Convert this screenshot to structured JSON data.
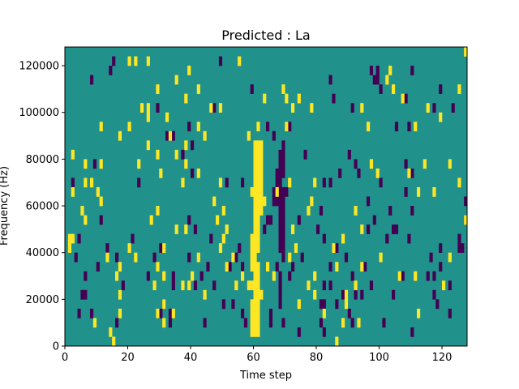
{
  "chart_data": {
    "type": "heatmap",
    "title": "Predicted : La",
    "xlabel": "Time step",
    "ylabel": "Frequency (Hz)",
    "xlim": [
      0,
      128
    ],
    "ylim": [
      0,
      128000
    ],
    "x_ticks": [
      0,
      20,
      40,
      60,
      80,
      100,
      120
    ],
    "y_ticks": [
      0,
      20000,
      40000,
      60000,
      80000,
      100000,
      120000
    ],
    "y_tick_labels": [
      "0",
      "20000",
      "40000",
      "60000",
      "80000",
      "100000",
      "120000"
    ],
    "color_levels": {
      "low": "#440154",
      "mid": "#21918c",
      "high": "#fde725"
    },
    "background_level": "mid",
    "cell_width_timesteps": 1,
    "cell_height_hz": 4000,
    "high_cells": [
      [
        127,
        124000
      ],
      [
        20,
        120000
      ],
      [
        22,
        120000
      ],
      [
        26,
        120000
      ],
      [
        55,
        120000
      ],
      [
        39,
        116000
      ],
      [
        103,
        116000
      ],
      [
        35,
        112000
      ],
      [
        102,
        112000
      ],
      [
        29,
        108000
      ],
      [
        42,
        108000
      ],
      [
        69,
        108000
      ],
      [
        104,
        108000
      ],
      [
        125,
        108000
      ],
      [
        38,
        104000
      ],
      [
        63,
        104000
      ],
      [
        70,
        104000
      ],
      [
        74,
        104000
      ],
      [
        107,
        104000
      ],
      [
        24,
        100000
      ],
      [
        26,
        100000
      ],
      [
        46,
        100000
      ],
      [
        49,
        100000
      ],
      [
        72,
        100000
      ],
      [
        78,
        100000
      ],
      [
        94,
        100000
      ],
      [
        115,
        100000
      ],
      [
        26,
        96000
      ],
      [
        32,
        96000
      ],
      [
        119,
        96000
      ],
      [
        11,
        92000
      ],
      [
        20,
        92000
      ],
      [
        42,
        92000
      ],
      [
        61,
        92000
      ],
      [
        70,
        92000
      ],
      [
        96,
        92000
      ],
      [
        111,
        92000
      ],
      [
        17,
        88000
      ],
      [
        33,
        88000
      ],
      [
        44,
        88000
      ],
      [
        58,
        88000
      ],
      [
        26,
        84000
      ],
      [
        38,
        84000
      ],
      [
        60,
        84000
      ],
      [
        61,
        84000
      ],
      [
        62,
        84000
      ],
      [
        2,
        80000
      ],
      [
        29,
        80000
      ],
      [
        35,
        80000
      ],
      [
        60,
        80000
      ],
      [
        61,
        80000
      ],
      [
        62,
        80000
      ],
      [
        6,
        76000
      ],
      [
        11,
        76000
      ],
      [
        23,
        76000
      ],
      [
        38,
        76000
      ],
      [
        60,
        76000
      ],
      [
        61,
        76000
      ],
      [
        62,
        76000
      ],
      [
        97,
        76000
      ],
      [
        114,
        76000
      ],
      [
        122,
        76000
      ],
      [
        30,
        72000
      ],
      [
        42,
        72000
      ],
      [
        60,
        72000
      ],
      [
        61,
        72000
      ],
      [
        62,
        72000
      ],
      [
        99,
        72000
      ],
      [
        109,
        72000
      ],
      [
        6,
        68000
      ],
      [
        8,
        68000
      ],
      [
        37,
        68000
      ],
      [
        49,
        68000
      ],
      [
        60,
        68000
      ],
      [
        61,
        68000
      ],
      [
        62,
        68000
      ],
      [
        71,
        68000
      ],
      [
        79,
        68000
      ],
      [
        125,
        68000
      ],
      [
        2,
        64000
      ],
      [
        10,
        64000
      ],
      [
        59,
        64000
      ],
      [
        60,
        64000
      ],
      [
        61,
        64000
      ],
      [
        62,
        64000
      ],
      [
        67,
        64000
      ],
      [
        112,
        64000
      ],
      [
        117,
        64000
      ],
      [
        11,
        60000
      ],
      [
        47,
        60000
      ],
      [
        60,
        60000
      ],
      [
        61,
        60000
      ],
      [
        62,
        60000
      ],
      [
        63,
        60000
      ],
      [
        78,
        60000
      ],
      [
        5,
        56000
      ],
      [
        29,
        56000
      ],
      [
        50,
        56000
      ],
      [
        60,
        56000
      ],
      [
        61,
        56000
      ],
      [
        62,
        56000
      ],
      [
        77,
        56000
      ],
      [
        92,
        56000
      ],
      [
        6,
        52000
      ],
      [
        27,
        52000
      ],
      [
        48,
        52000
      ],
      [
        60,
        52000
      ],
      [
        61,
        52000
      ],
      [
        127,
        52000
      ],
      [
        35,
        48000
      ],
      [
        38,
        48000
      ],
      [
        51,
        48000
      ],
      [
        60,
        48000
      ],
      [
        61,
        48000
      ],
      [
        72,
        48000
      ],
      [
        94,
        48000
      ],
      [
        1,
        44000
      ],
      [
        2,
        44000
      ],
      [
        50,
        44000
      ],
      [
        59,
        44000
      ],
      [
        60,
        44000
      ],
      [
        61,
        44000
      ],
      [
        88,
        44000
      ],
      [
        1,
        40000
      ],
      [
        20,
        40000
      ],
      [
        31,
        40000
      ],
      [
        49,
        40000
      ],
      [
        59,
        40000
      ],
      [
        60,
        40000
      ],
      [
        61,
        40000
      ],
      [
        73,
        40000
      ],
      [
        85,
        40000
      ],
      [
        13,
        36000
      ],
      [
        22,
        36000
      ],
      [
        42,
        36000
      ],
      [
        53,
        36000
      ],
      [
        59,
        36000
      ],
      [
        60,
        36000
      ],
      [
        71,
        36000
      ],
      [
        100,
        36000
      ],
      [
        122,
        36000
      ],
      [
        17,
        32000
      ],
      [
        29,
        32000
      ],
      [
        51,
        32000
      ],
      [
        59,
        32000
      ],
      [
        60,
        32000
      ],
      [
        61,
        32000
      ],
      [
        64,
        32000
      ],
      [
        86,
        32000
      ],
      [
        94,
        32000
      ],
      [
        16,
        28000
      ],
      [
        31,
        28000
      ],
      [
        40,
        28000
      ],
      [
        56,
        28000
      ],
      [
        60,
        28000
      ],
      [
        61,
        28000
      ],
      [
        66,
        28000
      ],
      [
        79,
        28000
      ],
      [
        106,
        28000
      ],
      [
        111,
        28000
      ],
      [
        28,
        24000
      ],
      [
        37,
        24000
      ],
      [
        39,
        24000
      ],
      [
        54,
        24000
      ],
      [
        58,
        24000
      ],
      [
        59,
        24000
      ],
      [
        60,
        24000
      ],
      [
        61,
        24000
      ],
      [
        77,
        24000
      ],
      [
        92,
        24000
      ],
      [
        120,
        24000
      ],
      [
        17,
        20000
      ],
      [
        44,
        20000
      ],
      [
        60,
        20000
      ],
      [
        61,
        20000
      ],
      [
        62,
        20000
      ],
      [
        79,
        20000
      ],
      [
        89,
        20000
      ],
      [
        31,
        16000
      ],
      [
        59,
        16000
      ],
      [
        60,
        16000
      ],
      [
        61,
        16000
      ],
      [
        74,
        16000
      ],
      [
        89,
        16000
      ],
      [
        17,
        12000
      ],
      [
        29,
        12000
      ],
      [
        34,
        12000
      ],
      [
        59,
        12000
      ],
      [
        60,
        12000
      ],
      [
        61,
        12000
      ],
      [
        82,
        12000
      ],
      [
        112,
        12000
      ],
      [
        9,
        8000
      ],
      [
        31,
        8000
      ],
      [
        59,
        8000
      ],
      [
        60,
        8000
      ],
      [
        61,
        8000
      ],
      [
        88,
        8000
      ],
      [
        93,
        8000
      ],
      [
        14,
        4000
      ],
      [
        59,
        4000
      ],
      [
        60,
        4000
      ],
      [
        61,
        4000
      ],
      [
        15,
        0
      ],
      [
        86,
        0
      ]
    ],
    "low_cells": [
      [
        15,
        120000
      ],
      [
        49,
        120000
      ],
      [
        14,
        116000
      ],
      [
        97,
        116000
      ],
      [
        99,
        116000
      ],
      [
        110,
        116000
      ],
      [
        8,
        112000
      ],
      [
        98,
        112000
      ],
      [
        99,
        112000
      ],
      [
        84,
        112000
      ],
      [
        59,
        108000
      ],
      [
        100,
        108000
      ],
      [
        119,
        108000
      ],
      [
        85,
        104000
      ],
      [
        108,
        104000
      ],
      [
        29,
        100000
      ],
      [
        91,
        100000
      ],
      [
        117,
        100000
      ],
      [
        123,
        100000
      ],
      [
        47,
        100000
      ],
      [
        39,
        92000
      ],
      [
        64,
        92000
      ],
      [
        71,
        92000
      ],
      [
        105,
        92000
      ],
      [
        109,
        92000
      ],
      [
        32,
        88000
      ],
      [
        34,
        88000
      ],
      [
        66,
        88000
      ],
      [
        40,
        84000
      ],
      [
        69,
        84000
      ],
      [
        37,
        80000
      ],
      [
        68,
        80000
      ],
      [
        69,
        80000
      ],
      [
        76,
        80000
      ],
      [
        90,
        80000
      ],
      [
        9,
        76000
      ],
      [
        68,
        76000
      ],
      [
        69,
        76000
      ],
      [
        92,
        76000
      ],
      [
        108,
        76000
      ],
      [
        40,
        72000
      ],
      [
        67,
        72000
      ],
      [
        68,
        72000
      ],
      [
        69,
        72000
      ],
      [
        87,
        72000
      ],
      [
        93,
        72000
      ],
      [
        110,
        72000
      ],
      [
        2,
        68000
      ],
      [
        23,
        68000
      ],
      [
        51,
        68000
      ],
      [
        56,
        68000
      ],
      [
        67,
        68000
      ],
      [
        68,
        68000
      ],
      [
        82,
        68000
      ],
      [
        84,
        68000
      ],
      [
        100,
        68000
      ],
      [
        66,
        64000
      ],
      [
        68,
        64000
      ],
      [
        69,
        64000
      ],
      [
        70,
        64000
      ],
      [
        108,
        64000
      ],
      [
        66,
        60000
      ],
      [
        67,
        60000
      ],
      [
        68,
        60000
      ],
      [
        69,
        60000
      ],
      [
        96,
        60000
      ],
      [
        127,
        60000
      ],
      [
        68,
        56000
      ],
      [
        69,
        56000
      ],
      [
        81,
        56000
      ],
      [
        103,
        56000
      ],
      [
        110,
        56000
      ],
      [
        11,
        52000
      ],
      [
        39,
        52000
      ],
      [
        64,
        52000
      ],
      [
        65,
        52000
      ],
      [
        68,
        52000
      ],
      [
        69,
        52000
      ],
      [
        74,
        52000
      ],
      [
        98,
        52000
      ],
      [
        127,
        52000
      ],
      [
        41,
        48000
      ],
      [
        63,
        48000
      ],
      [
        68,
        48000
      ],
      [
        69,
        48000
      ],
      [
        80,
        48000
      ],
      [
        96,
        48000
      ],
      [
        104,
        48000
      ],
      [
        105,
        48000
      ],
      [
        4,
        44000
      ],
      [
        21,
        44000
      ],
      [
        46,
        44000
      ],
      [
        68,
        44000
      ],
      [
        69,
        44000
      ],
      [
        82,
        44000
      ],
      [
        102,
        44000
      ],
      [
        109,
        44000
      ],
      [
        125,
        44000
      ],
      [
        13,
        40000
      ],
      [
        30,
        40000
      ],
      [
        55,
        40000
      ],
      [
        68,
        40000
      ],
      [
        69,
        40000
      ],
      [
        86,
        40000
      ],
      [
        119,
        40000
      ],
      [
        125,
        40000
      ],
      [
        126,
        40000
      ],
      [
        3,
        36000
      ],
      [
        16,
        36000
      ],
      [
        28,
        36000
      ],
      [
        39,
        36000
      ],
      [
        54,
        36000
      ],
      [
        69,
        36000
      ],
      [
        75,
        36000
      ],
      [
        89,
        36000
      ],
      [
        116,
        36000
      ],
      [
        10,
        32000
      ],
      [
        45,
        32000
      ],
      [
        52,
        32000
      ],
      [
        56,
        32000
      ],
      [
        67,
        32000
      ],
      [
        72,
        32000
      ],
      [
        84,
        32000
      ],
      [
        95,
        32000
      ],
      [
        119,
        32000
      ],
      [
        6,
        28000
      ],
      [
        26,
        28000
      ],
      [
        34,
        28000
      ],
      [
        43,
        28000
      ],
      [
        68,
        28000
      ],
      [
        71,
        28000
      ],
      [
        91,
        28000
      ],
      [
        107,
        28000
      ],
      [
        115,
        28000
      ],
      [
        117,
        28000
      ],
      [
        18,
        24000
      ],
      [
        34,
        24000
      ],
      [
        41,
        24000
      ],
      [
        47,
        24000
      ],
      [
        68,
        24000
      ],
      [
        82,
        24000
      ],
      [
        84,
        24000
      ],
      [
        97,
        24000
      ],
      [
        122,
        24000
      ],
      [
        5,
        20000
      ],
      [
        6,
        20000
      ],
      [
        68,
        20000
      ],
      [
        88,
        20000
      ],
      [
        92,
        20000
      ],
      [
        94,
        20000
      ],
      [
        104,
        20000
      ],
      [
        117,
        20000
      ],
      [
        31,
        16000
      ],
      [
        50,
        16000
      ],
      [
        53,
        16000
      ],
      [
        68,
        16000
      ],
      [
        81,
        16000
      ],
      [
        82,
        16000
      ],
      [
        86,
        16000
      ],
      [
        118,
        16000
      ],
      [
        4,
        12000
      ],
      [
        8,
        12000
      ],
      [
        30,
        12000
      ],
      [
        33,
        12000
      ],
      [
        56,
        12000
      ],
      [
        65,
        12000
      ],
      [
        90,
        12000
      ],
      [
        122,
        12000
      ],
      [
        16,
        8000
      ],
      [
        33,
        8000
      ],
      [
        44,
        8000
      ],
      [
        57,
        8000
      ],
      [
        65,
        8000
      ],
      [
        69,
        8000
      ],
      [
        81,
        8000
      ],
      [
        91,
        8000
      ],
      [
        101,
        8000
      ],
      [
        74,
        4000
      ],
      [
        82,
        4000
      ],
      [
        110,
        4000
      ]
    ]
  }
}
